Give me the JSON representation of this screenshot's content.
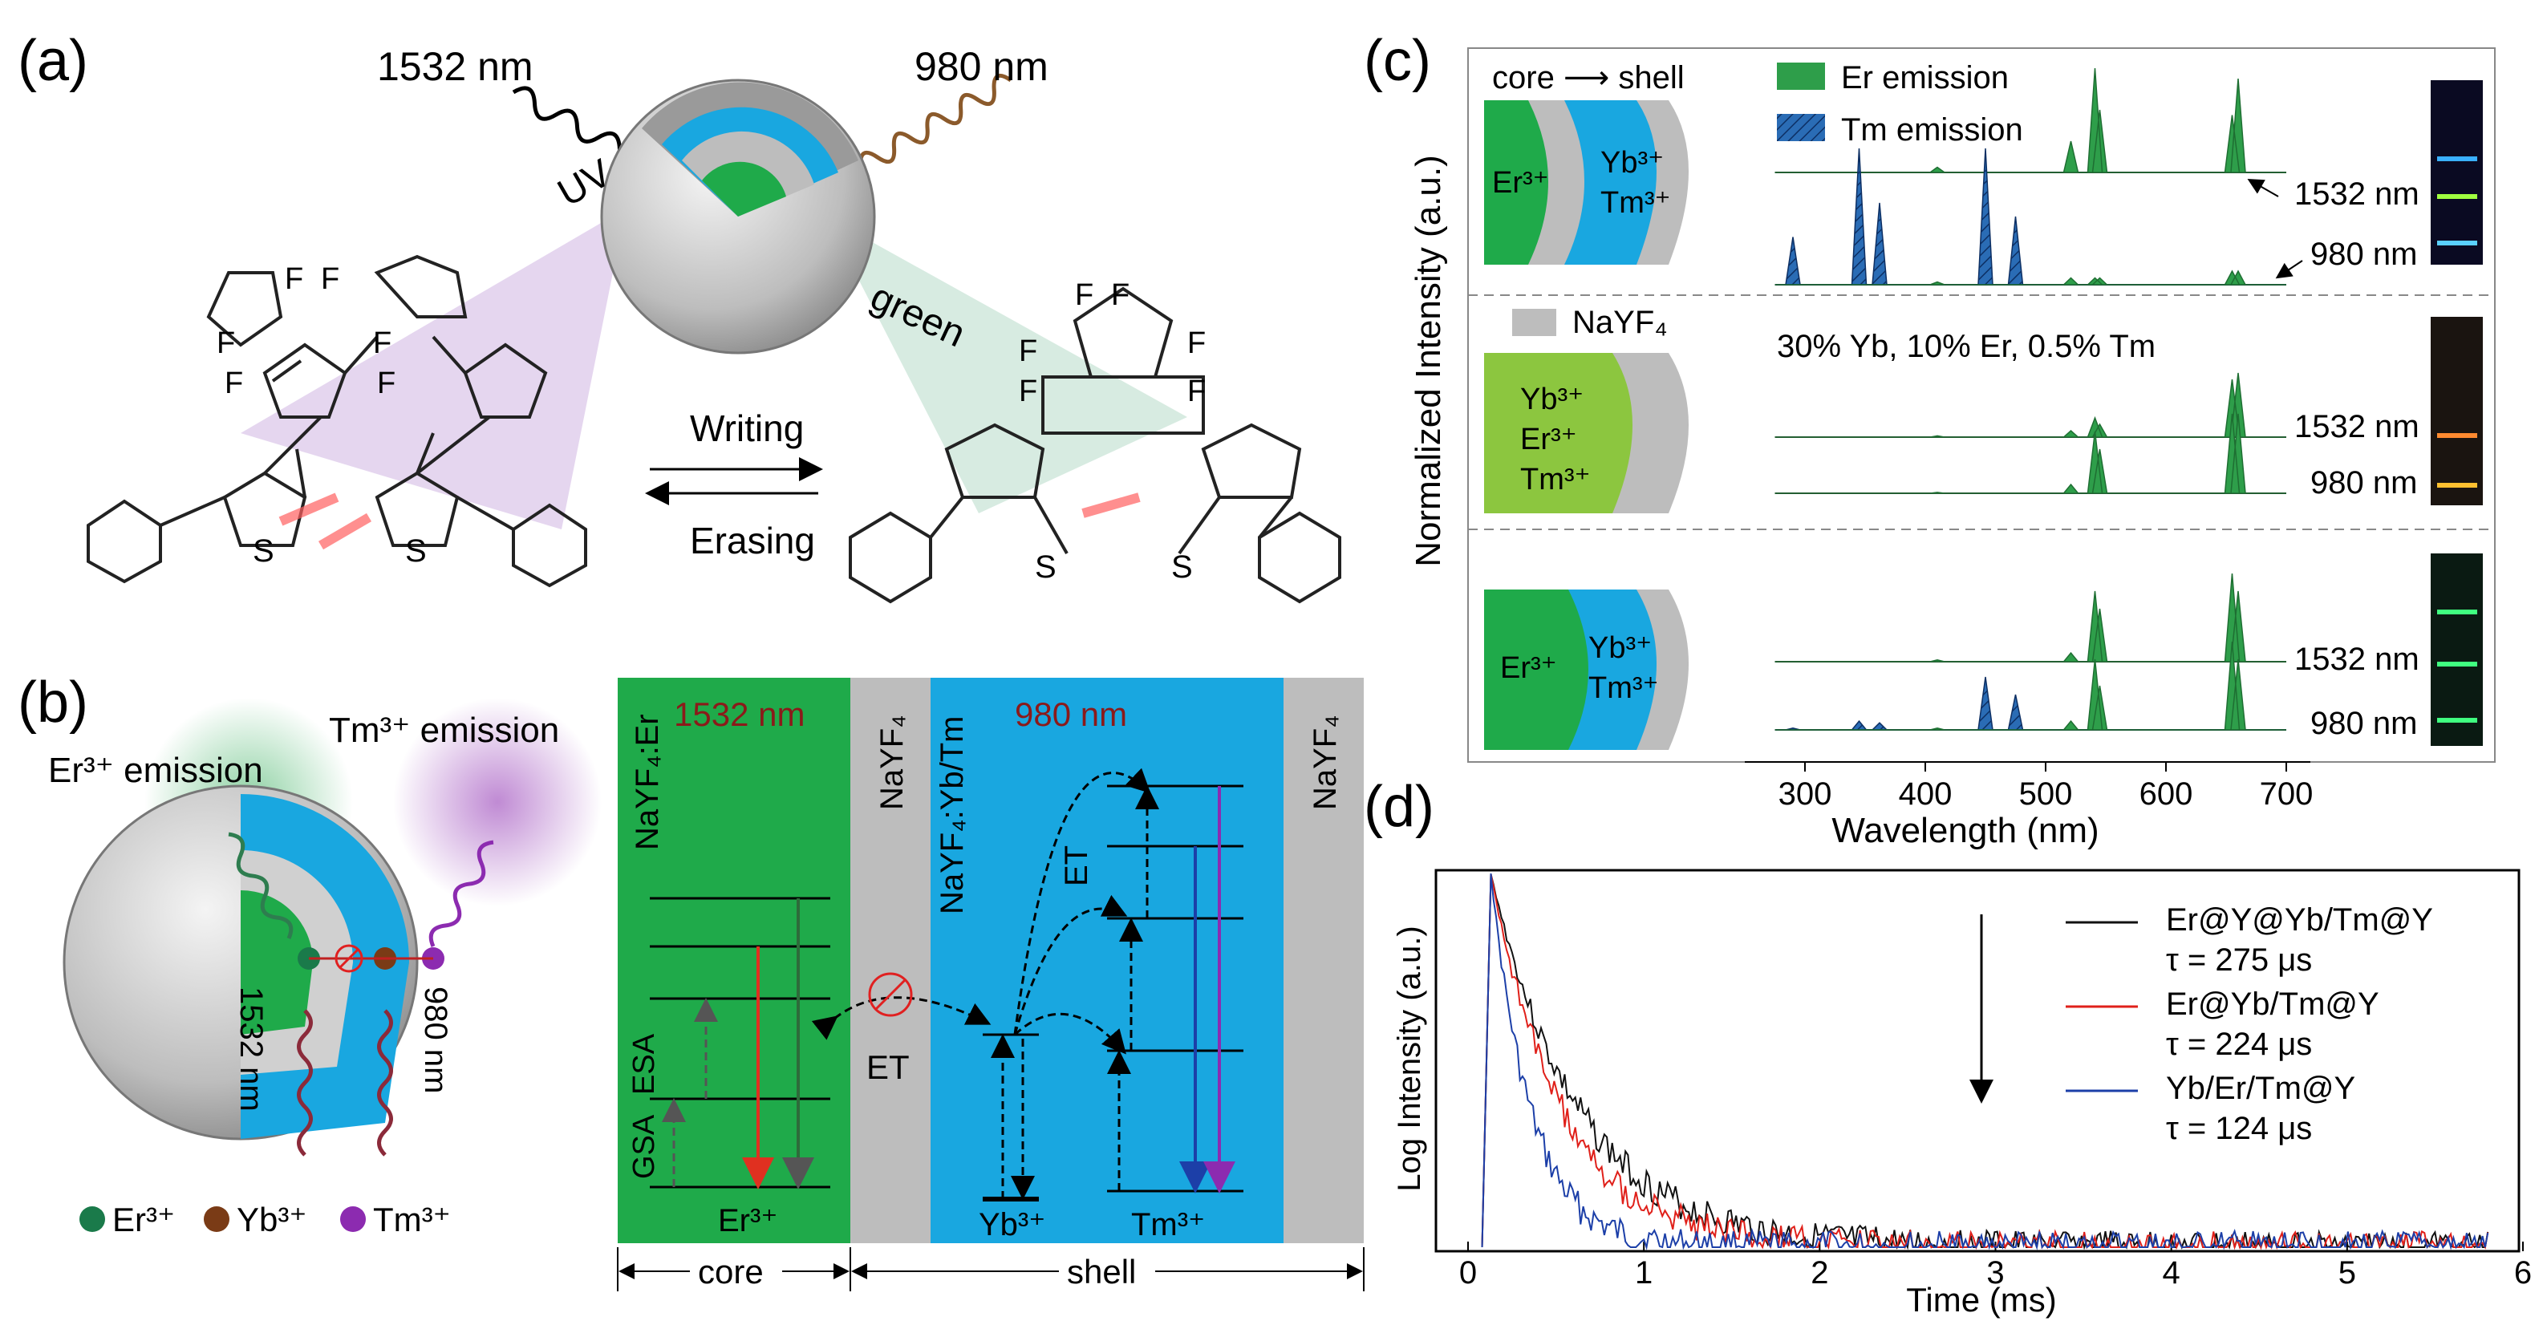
{
  "panels": {
    "a": "(a)",
    "b": "(b)",
    "c": "(c)",
    "d": "(d)"
  },
  "panel_a": {
    "left_wavelength": "1532 nm",
    "right_wavelength": "980 nm",
    "uv_label": "UV",
    "green_label": "green",
    "writing": "Writing",
    "erasing": "Erasing",
    "atom_F": "F",
    "atom_S": "S"
  },
  "panel_b": {
    "er_emission": "Er³⁺ emission",
    "tm_emission": "Tm³⁺ emission",
    "lbl_1532": "1532 nm",
    "lbl_980": "980 nm",
    "legend": [
      "Er³⁺",
      "Yb³⁺",
      "Tm³⁺"
    ],
    "core_layer": "NaYF₄:Er",
    "core_wavelength": "1532 nm",
    "inert_layer": "NaYF₄",
    "shell_layer": "NaYF₄:Yb/Tm",
    "shell_wavelength": "980 nm",
    "outer_layer": "NaYF₄",
    "esa": "ESA",
    "gsa": "GSA",
    "et_middle": "ET",
    "et_shell": "ET",
    "er_ion": "Er³⁺",
    "yb_ion": "Yb³⁺",
    "tm_ion": "Tm³⁺",
    "core_label": "core",
    "shell_label": "shell"
  },
  "panel_c": {
    "ylabel": "Normalized Intensity (a.u.)",
    "xlabel": "Wavelength (nm)",
    "xticks": [
      "300",
      "400",
      "500",
      "600",
      "700"
    ],
    "core_shell_label": "core ⟶ shell",
    "legend_er": "Er emission",
    "legend_tm": "Tm emission",
    "nayf4_label": "NaYF₄",
    "composition": "30% Yb, 10% Er, 0.5% Tm",
    "rows": [
      {
        "core": [
          "Er³⁺"
        ],
        "shell": [
          "Yb³⁺",
          "Tm³⁺"
        ],
        "exc1": "1532 nm",
        "exc2": "980 nm"
      },
      {
        "core": [
          "Yb³⁺",
          "Er³⁺",
          "Tm³⁺"
        ],
        "shell": [],
        "exc1": "1532 nm",
        "exc2": "980 nm"
      },
      {
        "core": [
          "Er³⁺"
        ],
        "shell": [
          "Yb³⁺",
          "Tm³⁺"
        ],
        "exc1": "1532 nm",
        "exc2": "980 nm"
      }
    ],
    "colors": {
      "er": "#2e9e4a",
      "tm": "#2a6cb5",
      "core_green": "#1faa4a",
      "core_lime": "#8cc63f",
      "shell_blue": "#19a7e0",
      "inert_gray": "#bdbdbd"
    }
  },
  "panel_d": {
    "ylabel": "Log Intensity (a.u.)",
    "xlabel": "Time (ms)",
    "xticks": [
      "0",
      "1",
      "2",
      "3",
      "4",
      "5",
      "6"
    ],
    "legend": [
      {
        "name": "Er@Y@Yb/Tm@Y",
        "tau": "τ = 275 μs",
        "color": "#111111"
      },
      {
        "name": "Er@Yb/Tm@Y",
        "tau": "τ = 224 μs",
        "color": "#e0201a"
      },
      {
        "name": "Yb/Er/Tm@Y",
        "tau": "τ = 124 μs",
        "color": "#1c3fa8"
      }
    ]
  },
  "chart_data": [
    {
      "type": "area",
      "title": "",
      "xlabel": "Wavelength (nm)",
      "ylabel": "Normalized Intensity (a.u.)",
      "xlim": [
        250,
        720
      ],
      "series": [
        {
          "name": "Er emission",
          "peaks_nm": [
            410,
            521,
            541,
            545,
            655,
            660
          ]
        },
        {
          "name": "Tm emission",
          "peaks_nm": [
            290,
            345,
            362,
            450,
            475
          ]
        }
      ]
    },
    {
      "type": "line",
      "title": "",
      "xlabel": "Time (ms)",
      "ylabel": "Log Intensity (a.u.)",
      "xlim": [
        0,
        6
      ],
      "series": [
        {
          "name": "Er@Y@Yb/Tm@Y",
          "tau_us": 275
        },
        {
          "name": "Er@Yb/Tm@Y",
          "tau_us": 224
        },
        {
          "name": "Yb/Er/Tm@Y",
          "tau_us": 124
        }
      ]
    }
  ]
}
